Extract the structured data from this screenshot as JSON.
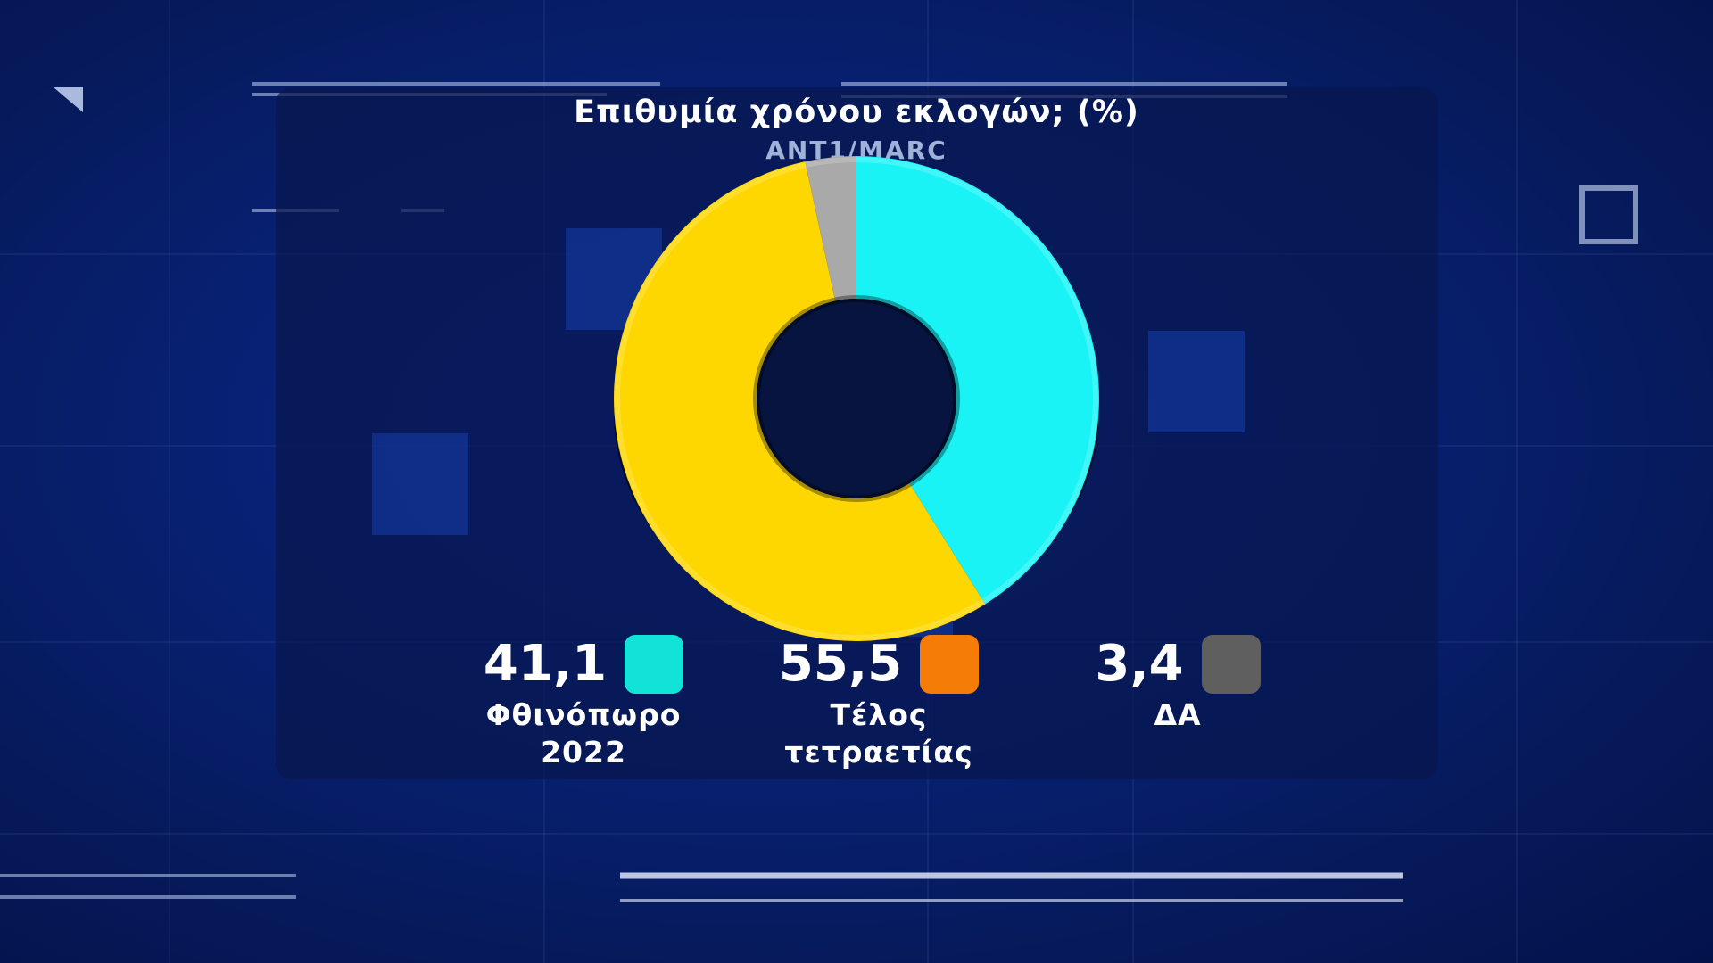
{
  "title": "Επιθυμία χρόνου εκλογών; (%)",
  "subtitle": "ANT1/MARC",
  "chart_data": {
    "type": "pie",
    "style": "donut",
    "title": "Επιθυμία χρόνου εκλογών; (%)",
    "subtitle": "ANT1/MARC",
    "categories": [
      "Φθινόπωρο 2022",
      "Τέλος τετραετίας",
      "ΔΑ"
    ],
    "values": [
      41.1,
      55.5,
      3.4
    ],
    "value_labels": [
      "41,1",
      "55,5",
      "3,4"
    ],
    "label_lines": [
      [
        "Φθινόπωρο",
        "2022"
      ],
      [
        "Τέλος",
        "τετραετίας"
      ],
      [
        "ΔΑ"
      ]
    ],
    "slice_colors": [
      "#19f3f6",
      "#ffd700",
      "#a9a9a9"
    ],
    "legend_swatch_colors": [
      "#11e3d9",
      "#f57c07",
      "#5f5f5f"
    ],
    "legend_placement": "bottom"
  }
}
